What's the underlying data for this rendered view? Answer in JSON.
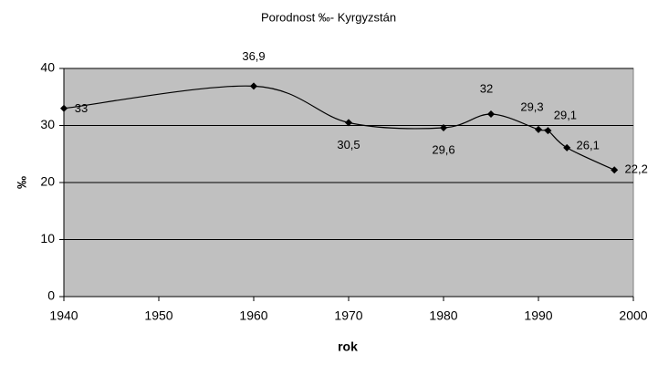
{
  "chart_data": {
    "type": "line",
    "title": "Porodnost ‰- Kyrgyzstán",
    "x_label": "rok",
    "y_label": "‰",
    "x": [
      1940,
      1960,
      1970,
      1980,
      1985,
      1990,
      1991,
      1993,
      1998
    ],
    "values": [
      33,
      36.9,
      30.5,
      29.6,
      32,
      29.3,
      29.1,
      26.1,
      22.2
    ],
    "value_labels": [
      "33",
      "36,9",
      "30,5",
      "29,6",
      "32",
      "29,3",
      "29,1",
      "26,1",
      "22,2"
    ],
    "color": "#000000",
    "xlim": [
      1940,
      2000
    ],
    "xticks": [
      1940,
      1950,
      1960,
      1970,
      1980,
      1990,
      2000
    ],
    "ylim": [
      0,
      40
    ],
    "yticks": [
      0,
      10,
      20,
      30,
      40
    ],
    "grid": true,
    "smooth": true
  }
}
